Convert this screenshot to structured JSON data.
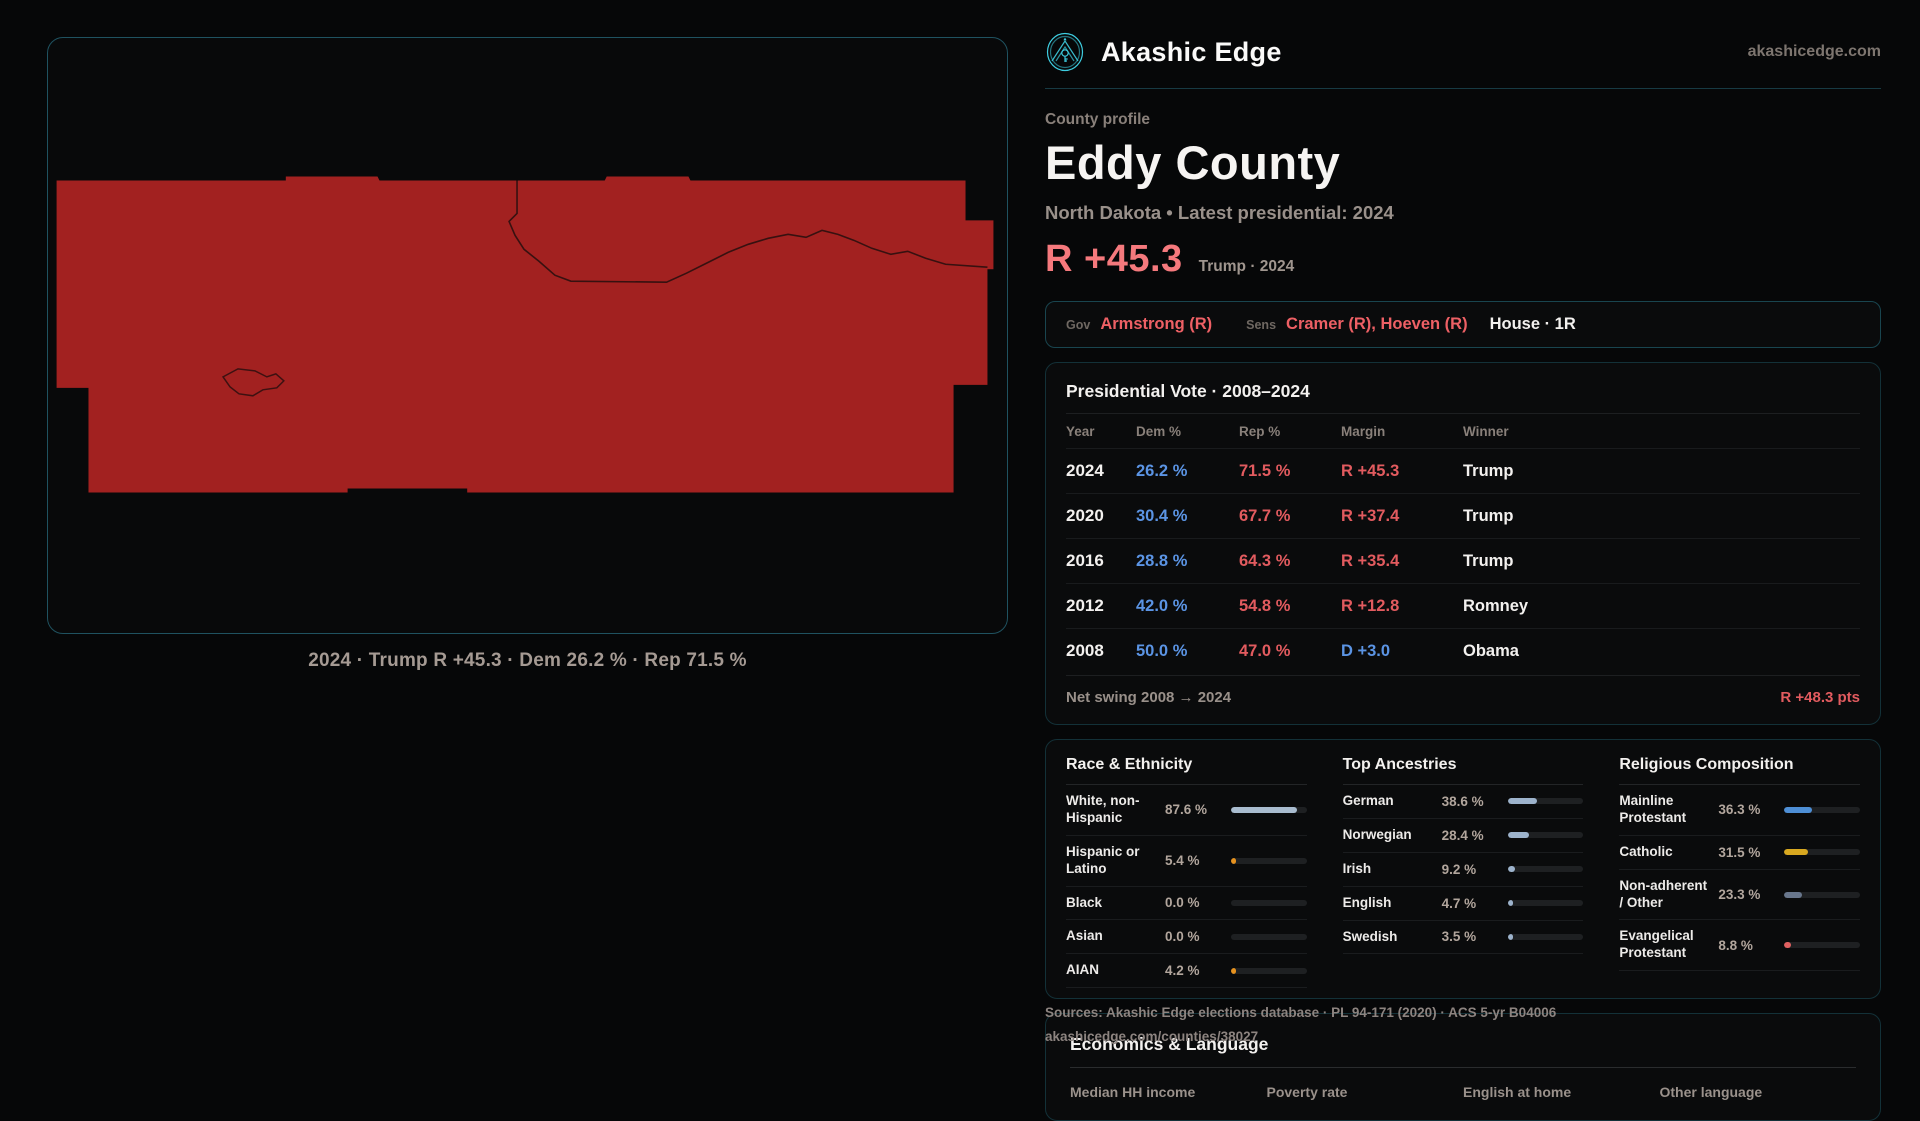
{
  "brand": {
    "name": "Akashic Edge",
    "site": "akashicedge.com"
  },
  "profile": {
    "eyebrow": "County profile",
    "title": "Eddy County",
    "subtitle": "North Dakota • Latest presidential: 2024",
    "margin_value": "R +45.3",
    "margin_context": "Trump · 2024"
  },
  "officials": {
    "gov_label": "Gov",
    "gov_value": "Armstrong (R)",
    "sens_label": "Sens",
    "sens_value": "Cramer (R), Hoeven (R)",
    "house_value": "House · 1R"
  },
  "map": {
    "caption": "2024 · Trump R +45.3 · Dem 26.2 % · Rep 71.5 %",
    "fill_color": "#a22120"
  },
  "presidential": {
    "title": "Presidential Vote · 2008–2024",
    "columns": [
      "Year",
      "Dem %",
      "Rep %",
      "Margin",
      "Winner"
    ],
    "rows": [
      {
        "year": "2024",
        "dem": "26.2 %",
        "rep": "71.5 %",
        "margin": "R +45.3",
        "margin_party": "R",
        "winner": "Trump"
      },
      {
        "year": "2020",
        "dem": "30.4 %",
        "rep": "67.7 %",
        "margin": "R +37.4",
        "margin_party": "R",
        "winner": "Trump"
      },
      {
        "year": "2016",
        "dem": "28.8 %",
        "rep": "64.3 %",
        "margin": "R +35.4",
        "margin_party": "R",
        "winner": "Trump"
      },
      {
        "year": "2012",
        "dem": "42.0 %",
        "rep": "54.8 %",
        "margin": "R +12.8",
        "margin_party": "R",
        "winner": "Romney"
      },
      {
        "year": "2008",
        "dem": "50.0 %",
        "rep": "47.0 %",
        "margin": "D +3.0",
        "margin_party": "D",
        "winner": "Obama"
      }
    ],
    "swing_label": "Net swing 2008 → 2024",
    "swing_value": "R +48.3 pts"
  },
  "demographics": {
    "race": {
      "title": "Race & Ethnicity",
      "rows": [
        {
          "label": "White, non-Hispanic",
          "value": "87.6 %",
          "pct": 87.6,
          "color": "#a9bccf"
        },
        {
          "label": "Hispanic or Latino",
          "value": "5.4 %",
          "pct": 5.4,
          "color": "#e6921f"
        },
        {
          "label": "Black",
          "value": "0.0 %",
          "pct": 0,
          "color": "#a9bccf"
        },
        {
          "label": "Asian",
          "value": "0.0 %",
          "pct": 0,
          "color": "#a9bccf"
        },
        {
          "label": "AIAN",
          "value": "4.2 %",
          "pct": 4.2,
          "color": "#e6921f"
        }
      ]
    },
    "ancestries": {
      "title": "Top Ancestries",
      "rows": [
        {
          "label": "German",
          "value": "38.6 %",
          "pct": 38.6,
          "color": "#9db3cc"
        },
        {
          "label": "Norwegian",
          "value": "28.4 %",
          "pct": 28.4,
          "color": "#9db3cc"
        },
        {
          "label": "Irish",
          "value": "9.2 %",
          "pct": 9.2,
          "color": "#9db3cc"
        },
        {
          "label": "English",
          "value": "4.7 %",
          "pct": 4.7,
          "color": "#9db3cc"
        },
        {
          "label": "Swedish",
          "value": "3.5 %",
          "pct": 3.5,
          "color": "#9db3cc"
        }
      ]
    },
    "religion": {
      "title": "Religious Composition",
      "rows": [
        {
          "label": "Mainline Protestant",
          "value": "36.3 %",
          "pct": 36.3,
          "color": "#4e8fd6"
        },
        {
          "label": "Catholic",
          "value": "31.5 %",
          "pct": 31.5,
          "color": "#d8a820"
        },
        {
          "label": "Non-adherent / Other",
          "value": "23.3 %",
          "pct": 23.3,
          "color": "#68768c"
        },
        {
          "label": "Evangelical Protestant",
          "value": "8.8 %",
          "pct": 8.8,
          "color": "#e06060"
        }
      ]
    }
  },
  "economics": {
    "title": "Economics & Language",
    "columns": [
      "Median HH income",
      "Poverty rate",
      "English at home",
      "Other language"
    ]
  },
  "sources": {
    "line1": "Sources: Akashic Edge elections database · PL 94-171 (2020) · ACS 5-yr B04006",
    "line2": "akashicedge.com/counties/38027"
  }
}
